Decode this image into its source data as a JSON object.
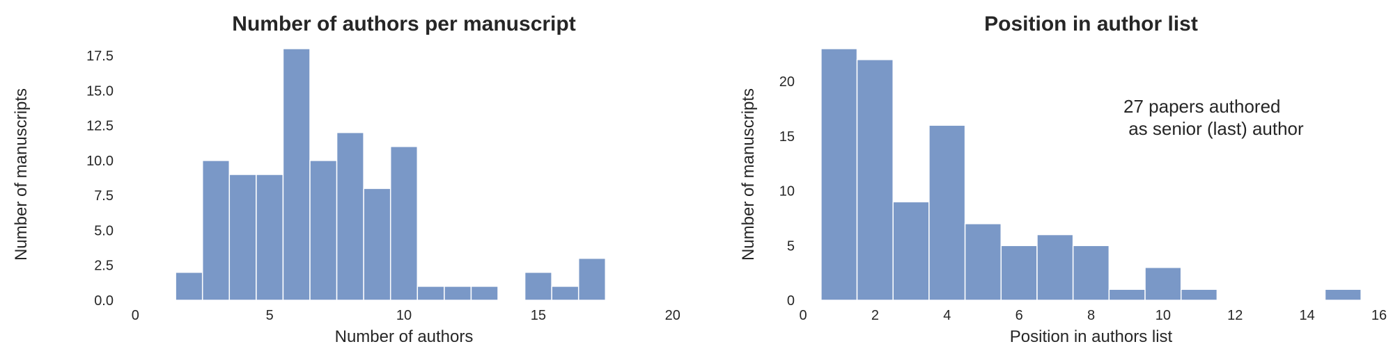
{
  "chart_data": [
    {
      "type": "bar",
      "title": "Number of authors per manuscript",
      "xlabel": "Number of authors",
      "ylabel": "Number of manuscripts",
      "xlim": [
        -0.5,
        20.5
      ],
      "ylim": [
        0,
        18
      ],
      "xticks": [
        0,
        5,
        10,
        15,
        20
      ],
      "xtick_labels": [
        "0",
        "5",
        "10",
        "15",
        "20"
      ],
      "yticks": [
        0,
        2.5,
        5,
        7.5,
        10,
        12.5,
        15,
        17.5
      ],
      "ytick_labels": [
        "0.0",
        "2.5",
        "5.0",
        "7.5",
        "10.0",
        "12.5",
        "15.0",
        "17.5"
      ],
      "bins": [
        {
          "x0": 1.5,
          "x1": 2.5,
          "value": 2
        },
        {
          "x0": 2.5,
          "x1": 3.5,
          "value": 10
        },
        {
          "x0": 3.5,
          "x1": 4.5,
          "value": 9
        },
        {
          "x0": 4.5,
          "x1": 5.5,
          "value": 9
        },
        {
          "x0": 5.5,
          "x1": 6.5,
          "value": 18
        },
        {
          "x0": 6.5,
          "x1": 7.5,
          "value": 10
        },
        {
          "x0": 7.5,
          "x1": 8.5,
          "value": 12
        },
        {
          "x0": 8.5,
          "x1": 9.5,
          "value": 8
        },
        {
          "x0": 9.5,
          "x1": 10.5,
          "value": 11
        },
        {
          "x0": 10.5,
          "x1": 11.5,
          "value": 1
        },
        {
          "x0": 11.5,
          "x1": 12.5,
          "value": 1
        },
        {
          "x0": 12.5,
          "x1": 13.5,
          "value": 1
        },
        {
          "x0": 14.5,
          "x1": 15.5,
          "value": 2
        },
        {
          "x0": 15.5,
          "x1": 16.5,
          "value": 1
        },
        {
          "x0": 16.5,
          "x1": 17.5,
          "value": 3
        }
      ],
      "bar_color": "#7a98c7",
      "grid": false,
      "annotation": ""
    },
    {
      "type": "bar",
      "title": "Position in author list",
      "xlabel": "Position in authors list",
      "ylabel": "Number of manuscripts",
      "xlim": [
        0,
        16
      ],
      "ylim": [
        0,
        23
      ],
      "xticks": [
        0,
        2,
        4,
        6,
        8,
        10,
        12,
        14,
        16
      ],
      "xtick_labels": [
        "0",
        "2",
        "4",
        "6",
        "8",
        "10",
        "12",
        "14",
        "16"
      ],
      "yticks": [
        0,
        5,
        10,
        15,
        20
      ],
      "ytick_labels": [
        "0",
        "5",
        "10",
        "15",
        "20"
      ],
      "bins": [
        {
          "x0": 0.5,
          "x1": 1.5,
          "value": 23
        },
        {
          "x0": 1.5,
          "x1": 2.5,
          "value": 22
        },
        {
          "x0": 2.5,
          "x1": 3.5,
          "value": 9
        },
        {
          "x0": 3.5,
          "x1": 4.5,
          "value": 16
        },
        {
          "x0": 4.5,
          "x1": 5.5,
          "value": 7
        },
        {
          "x0": 5.5,
          "x1": 6.5,
          "value": 5
        },
        {
          "x0": 6.5,
          "x1": 7.5,
          "value": 6
        },
        {
          "x0": 7.5,
          "x1": 8.5,
          "value": 5
        },
        {
          "x0": 8.5,
          "x1": 9.5,
          "value": 1
        },
        {
          "x0": 9.5,
          "x1": 10.5,
          "value": 3
        },
        {
          "x0": 10.5,
          "x1": 11.5,
          "value": 1
        },
        {
          "x0": 14.5,
          "x1": 15.5,
          "value": 1
        }
      ],
      "bar_color": "#7a98c7",
      "grid": false,
      "annotation": "27 papers authored\n as senior (last) author"
    }
  ]
}
